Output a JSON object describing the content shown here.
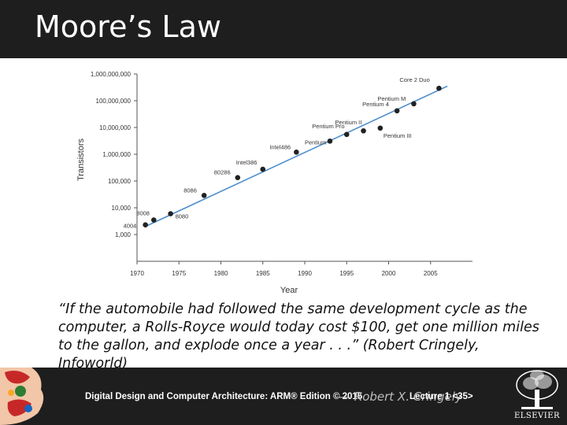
{
  "slide": {
    "title": "Moore’s Law",
    "quote_lines": [
      "“If the automobile had followed the same development cycle as the",
      "computer, a Rolls-Royce would today cost $100, get one million miles",
      "to the gallon, and explode once a year . . .”  (Robert Cringely,",
      "Infoworld)"
    ],
    "quote_overflow": "— Robert X. Cringely",
    "footer_left": "Digital Design and Computer Architecture: ARM® Edition © 2015",
    "footer_right": "Lecture 1 <35>",
    "publisher": "ELSEVIER"
  },
  "chart_data": {
    "type": "scatter",
    "title": "",
    "xlabel": "Year",
    "ylabel": "Transistors",
    "y_scale": "log",
    "xlim": [
      1970,
      2010
    ],
    "ylim": [
      100,
      1000000000
    ],
    "x_ticks": [
      "1970",
      "1975",
      "1980",
      "1985",
      "1990",
      "1995",
      "2000",
      "2005"
    ],
    "x_tick_values": [
      1970,
      1975,
      1980,
      1985,
      1990,
      1995,
      2000,
      2005
    ],
    "y_ticks": [
      "1,000",
      "10,000",
      "100,000",
      "1,000,000",
      "10,000,000",
      "100,000,000",
      "1,000,000,000"
    ],
    "y_tick_values": [
      1000,
      10000,
      100000,
      1000000,
      10000000,
      100000000,
      1000000000
    ],
    "points": [
      {
        "label": "4004",
        "x": 1971,
        "y": 2300
      },
      {
        "label": "8008",
        "x": 1972,
        "y": 3500
      },
      {
        "label": "8080",
        "x": 1974,
        "y": 6000
      },
      {
        "label": "8086",
        "x": 1978,
        "y": 29000
      },
      {
        "label": "80286",
        "x": 1982,
        "y": 134000
      },
      {
        "label": "Intel386",
        "x": 1985,
        "y": 275000
      },
      {
        "label": "Intel486",
        "x": 1989,
        "y": 1200000
      },
      {
        "label": "Pentium",
        "x": 1993,
        "y": 3100000
      },
      {
        "label": "Pentium Pro",
        "x": 1995,
        "y": 5500000
      },
      {
        "label": "Pentium II",
        "x": 1997,
        "y": 7500000
      },
      {
        "label": "Pentium III",
        "x": 1999,
        "y": 9500000
      },
      {
        "label": "Pentium 4",
        "x": 2001,
        "y": 42000000
      },
      {
        "label": "Pentium M",
        "x": 2003,
        "y": 77000000
      },
      {
        "label": "Core 2 Duo",
        "x": 2006,
        "y": 291000000
      }
    ],
    "trend": {
      "x": [
        1971,
        2007
      ],
      "y": [
        2000,
        350000000
      ]
    },
    "grid": false,
    "legend": "none",
    "colors": {
      "point": "#222222",
      "trend": "#4f8fcd",
      "axis": "#555555",
      "text": "#333333"
    }
  }
}
